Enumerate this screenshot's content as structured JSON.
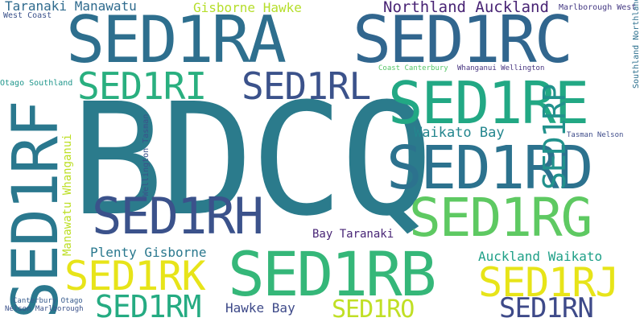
{
  "cloud": {
    "words": {
      "bdcq": "BDCQ",
      "sed1ra": "SED1RA",
      "sed1rc": "SED1RC",
      "sed1re": "SED1RE",
      "sed1rd": "SED1RD",
      "sed1rg": "SED1RG",
      "sed1rb": "SED1RB",
      "sed1rh": "SED1RH",
      "sed1ri": "SED1RI",
      "sed1rl": "SED1RL",
      "sed1rk": "SED1RK",
      "sed1rm": "SED1RM",
      "sed1rj": "SED1RJ",
      "sed1rn": "SED1RN",
      "sed1ro": "SED1RO",
      "sed1rf": "SED1RF",
      "sed1rp": "SED1RP",
      "northland_auckland": "Northland Auckland",
      "taranaki_manawatu": "Taranaki Manawatu",
      "gisborne_hawke": "Gisborne Hawke",
      "marlborough_west": "Marlborough West",
      "west_coast": "West Coast",
      "coast_canterbury": "Coast Canterbury",
      "whanganui_wellington": "Whanganui Wellington",
      "otago_southland": "Otago Southland",
      "waikato_bay": "Waikato Bay",
      "tasman_nelson": "Tasman Nelson",
      "plenty_gisborne": "Plenty Gisborne",
      "bay_taranaki": "Bay Taranaki",
      "auckland_waikato": "Auckland Waikato",
      "hawke_bay": "Hawke Bay",
      "canterbury_otago": "Canterbury Otago",
      "nelson_marlborough": "Nelson Marlborough",
      "southland_northland": "Southland Northland",
      "manawatu_whanganui": "Manawatu Whanganui",
      "wellington_tasman": "Wellington Tasman"
    },
    "colors": {
      "bdcq": "#2b7b8c",
      "sed1ra": "#2e6f8e",
      "sed1rc": "#31668e",
      "sed1re": "#22a884",
      "sed1rd": "#2c728e",
      "sed1rg": "#5ec962",
      "sed1rb": "#35b779",
      "sed1rh": "#3b528b",
      "sed1ri": "#29af7f",
      "sed1rl": "#3b528b",
      "sed1rk": "#e7e419",
      "sed1rm": "#25ab82",
      "sed1rj": "#e7e419",
      "sed1rn": "#3e4a89",
      "sed1ro": "#c0df25",
      "sed1rf": "#2a788e",
      "sed1rp": "#21918c",
      "northland_auckland": "#482374",
      "taranaki_manawatu": "#2f6b8e",
      "gisborne_hawke": "#b5de2b",
      "marlborough_west": "#443983",
      "west_coast": "#3b528b",
      "coast_canterbury": "#56c667",
      "whanganui_wellington": "#46337f",
      "otago_southland": "#1f968b",
      "waikato_bay": "#24868e",
      "tasman_nelson": "#3e4c8a",
      "plenty_gisborne": "#2a788e",
      "bay_taranaki": "#482576",
      "auckland_waikato": "#1fa088",
      "hawke_bay": "#3e4a89",
      "canterbury_otago": "#375b8d",
      "nelson_marlborough": "#3b528b",
      "southland_northland": "#2d708e",
      "manawatu_whanganui": "#bddf26",
      "wellington_tasman": "#3b528b"
    }
  }
}
